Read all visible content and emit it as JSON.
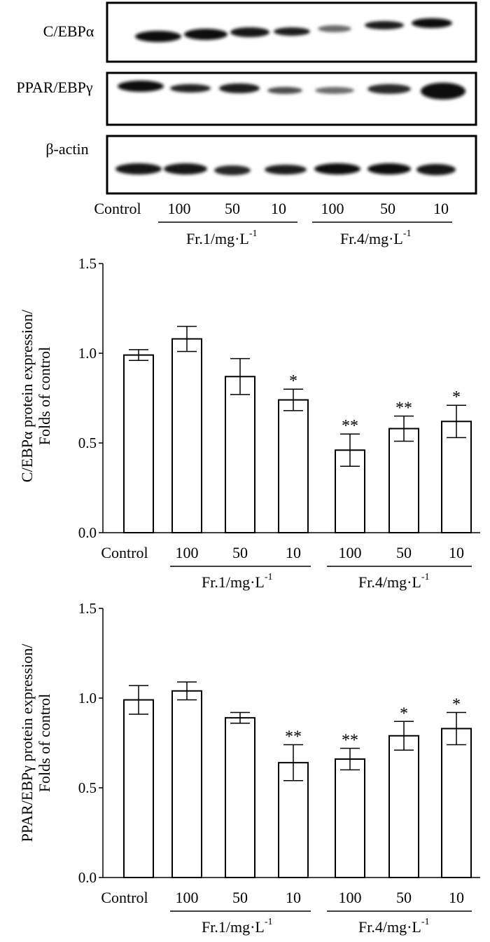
{
  "blot": {
    "rows": [
      {
        "label": "C/EBPα"
      },
      {
        "label": "PPAR/EBPγ"
      },
      {
        "label": "β-actin"
      }
    ],
    "lanes": [
      "Control",
      "100",
      "50",
      "10",
      "100",
      "50",
      "10"
    ],
    "groups": [
      {
        "label_main": "Fr.1/mg·L",
        "label_sup": "-1"
      },
      {
        "label_main": "Fr.4/mg·L",
        "label_sup": "-1"
      }
    ]
  },
  "chart_data": [
    {
      "type": "bar",
      "ylabel_line1": "C/EBPα protein expression/",
      "ylabel_line2": "Folds of control",
      "ylim": [
        0,
        1.5
      ],
      "yticks": [
        "0.0",
        "0.5",
        "1.0",
        "1.5"
      ],
      "categories": [
        "Control",
        "100",
        "50",
        "10",
        "100",
        "50",
        "10"
      ],
      "values": [
        0.99,
        1.08,
        0.87,
        0.74,
        0.46,
        0.58,
        0.62
      ],
      "errors": [
        0.03,
        0.07,
        0.1,
        0.06,
        0.09,
        0.07,
        0.09
      ],
      "significance": [
        "",
        "",
        "",
        "*",
        "**",
        "**",
        "*"
      ],
      "groups": [
        {
          "label_main": "Fr.1/mg·L",
          "label_sup": "-1"
        },
        {
          "label_main": "Fr.4/mg·L",
          "label_sup": "-1"
        }
      ]
    },
    {
      "type": "bar",
      "ylabel_line1": "PPAR/EBPγ protein expression/",
      "ylabel_line2": "Folds of control",
      "ylim": [
        0,
        1.5
      ],
      "yticks": [
        "0.0",
        "0.5",
        "1.0",
        "1.5"
      ],
      "categories": [
        "Control",
        "100",
        "50",
        "10",
        "100",
        "50",
        "10"
      ],
      "values": [
        0.99,
        1.04,
        0.89,
        0.64,
        0.66,
        0.79,
        0.83
      ],
      "errors": [
        0.08,
        0.05,
        0.03,
        0.1,
        0.06,
        0.08,
        0.09
      ],
      "significance": [
        "",
        "",
        "",
        "**",
        "**",
        "*",
        "*"
      ],
      "groups": [
        {
          "label_main": "Fr.1/mg·L",
          "label_sup": "-1"
        },
        {
          "label_main": "Fr.4/mg·L",
          "label_sup": "-1"
        }
      ]
    }
  ]
}
